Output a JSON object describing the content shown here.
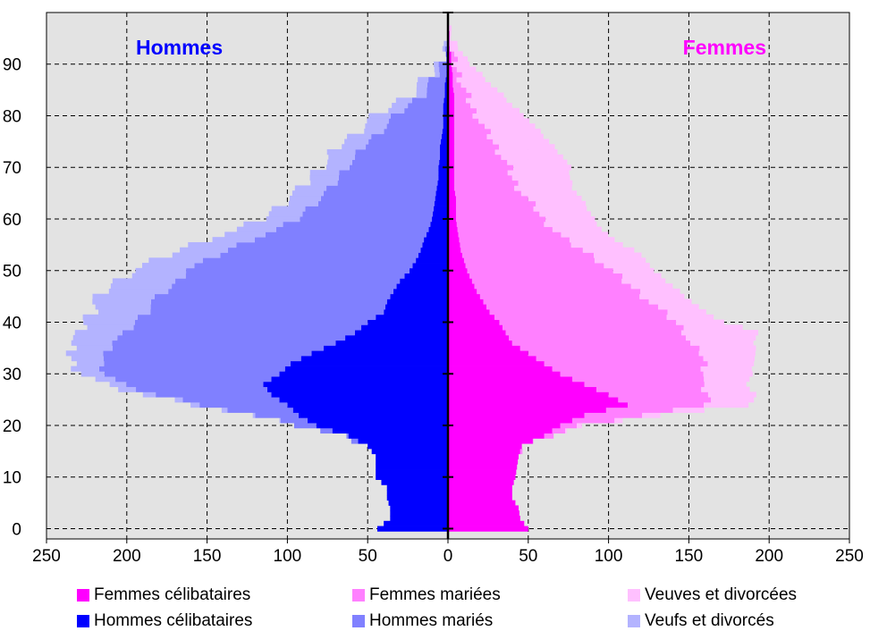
{
  "chart_data": {
    "type": "bar",
    "orientation": "horizontal-pyramid",
    "labels": {
      "men": "Hommes",
      "women": "Femmes"
    },
    "colors": {
      "men": "#0000ff",
      "women": "#ff00ff"
    },
    "xlim": [
      -250,
      250
    ],
    "ylim": [
      -2,
      100
    ],
    "x_ticks": [
      -250,
      -200,
      -150,
      -100,
      -50,
      0,
      50,
      100,
      150,
      200,
      250
    ],
    "x_tick_labels": [
      "250",
      "200",
      "150",
      "100",
      "50",
      "0",
      "50",
      "100",
      "150",
      "200",
      "250"
    ],
    "y_ticks": [
      0,
      10,
      20,
      30,
      40,
      50,
      60,
      70,
      80,
      90
    ],
    "y_tick_labels": [
      "0",
      "10",
      "20",
      "30",
      "40",
      "50",
      "60",
      "70",
      "80",
      "90"
    ],
    "grid": true,
    "legend_position": "bottom",
    "series": [
      {
        "name": "Femmes célibataires",
        "color": "#ff00ff",
        "side": "right",
        "values": []
      },
      {
        "name": "Femmes mariées",
        "color": "#ff80ff",
        "side": "right",
        "values": []
      },
      {
        "name": "Veuves et divorcées",
        "color": "#ffc0ff",
        "side": "right",
        "values": []
      },
      {
        "name": "Hommes célibataires",
        "color": "#0000ff",
        "side": "left",
        "values": []
      },
      {
        "name": "Hommes mariés",
        "color": "#8080ff",
        "side": "left",
        "values": []
      },
      {
        "name": "Veufs et divorcés",
        "color": "#b3b3ff",
        "side": "left",
        "values": []
      }
    ],
    "profiles": {
      "ages": [
        0,
        2,
        4,
        6,
        8,
        10,
        12,
        14,
        16,
        18,
        20,
        22,
        24,
        26,
        28,
        30,
        32,
        34,
        36,
        38,
        40,
        42,
        44,
        46,
        48,
        50,
        52,
        54,
        56,
        58,
        60,
        62,
        64,
        66,
        68,
        70,
        72,
        74,
        76,
        78,
        80,
        82,
        84,
        86,
        88,
        90,
        92,
        94,
        96,
        98
      ],
      "men_single": [
        44,
        36,
        36,
        38,
        38,
        45,
        45,
        45,
        50,
        62,
        82,
        93,
        100,
        110,
        115,
        105,
        98,
        85,
        70,
        58,
        50,
        40,
        38,
        34,
        30,
        24,
        20,
        17,
        15,
        12,
        10,
        9,
        8,
        7,
        6,
        6,
        5,
        5,
        4,
        3,
        3,
        3,
        2,
        2,
        1,
        1,
        1,
        0,
        0,
        0
      ],
      "men_married": [
        0,
        0,
        0,
        0,
        0,
        0,
        0,
        0,
        0,
        3,
        12,
        28,
        52,
        72,
        88,
        108,
        118,
        128,
        140,
        142,
        145,
        148,
        146,
        142,
        138,
        140,
        130,
        120,
        108,
        94,
        84,
        78,
        72,
        66,
        62,
        58,
        52,
        48,
        42,
        36,
        30,
        22,
        14,
        10,
        6,
        3,
        1,
        0,
        0,
        0
      ],
      "men_widowed": [
        0,
        0,
        0,
        0,
        0,
        0,
        0,
        0,
        0,
        0,
        0,
        2,
        4,
        8,
        12,
        14,
        18,
        22,
        26,
        28,
        32,
        34,
        36,
        38,
        38,
        32,
        32,
        30,
        28,
        24,
        22,
        20,
        20,
        18,
        18,
        16,
        16,
        16,
        14,
        14,
        12,
        10,
        8,
        6,
        4,
        2,
        1,
        1,
        0,
        0
      ],
      "women_single": [
        50,
        45,
        44,
        40,
        40,
        42,
        43,
        44,
        46,
        60,
        70,
        85,
        112,
        100,
        85,
        70,
        60,
        50,
        40,
        36,
        32,
        26,
        22,
        18,
        15,
        12,
        10,
        8,
        7,
        6,
        5,
        5,
        5,
        4,
        4,
        4,
        4,
        4,
        4,
        4,
        4,
        4,
        4,
        3,
        3,
        2,
        2,
        1,
        1,
        0
      ],
      "women_married": [
        0,
        0,
        0,
        0,
        0,
        0,
        0,
        0,
        1,
        4,
        12,
        35,
        50,
        62,
        72,
        90,
        100,
        108,
        110,
        112,
        110,
        108,
        104,
        100,
        95,
        90,
        84,
        76,
        66,
        60,
        54,
        50,
        44,
        40,
        36,
        34,
        30,
        26,
        22,
        18,
        14,
        10,
        8,
        6,
        4,
        2,
        1,
        0,
        0,
        0
      ],
      "women_widowed": [
        0,
        0,
        0,
        0,
        0,
        0,
        0,
        0,
        0,
        0,
        2,
        12,
        26,
        30,
        28,
        30,
        30,
        34,
        40,
        46,
        30,
        26,
        26,
        26,
        26,
        26,
        30,
        32,
        30,
        30,
        32,
        32,
        34,
        34,
        36,
        38,
        38,
        36,
        34,
        32,
        30,
        26,
        22,
        18,
        14,
        10,
        6,
        3,
        1,
        0
      ]
    }
  }
}
